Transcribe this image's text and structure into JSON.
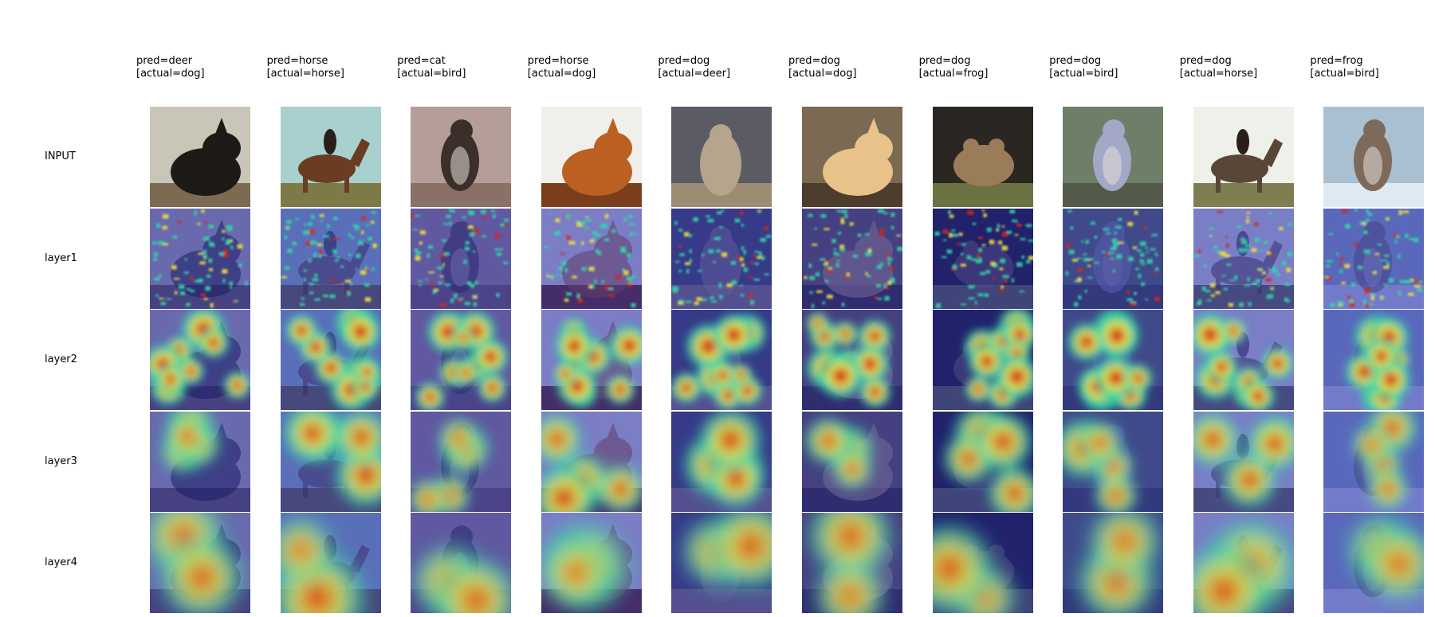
{
  "columns": [
    {
      "pred": "pred=deer",
      "actual": "[actual=dog]",
      "subject": "dog",
      "palette": {
        "bg": "#c9c6b7",
        "fg": "#1e1a17",
        "ground": "#7c6a52"
      }
    },
    {
      "pred": "pred=horse",
      "actual": "[actual=horse]",
      "subject": "horse",
      "palette": {
        "bg": "#a7d0ce",
        "fg": "#6a3d22",
        "ground": "#7e7a48"
      }
    },
    {
      "pred": "pred=cat",
      "actual": "[actual=bird]",
      "subject": "bird",
      "palette": {
        "bg": "#b69e98",
        "fg": "#3b2f29",
        "ground": "#8b7066"
      }
    },
    {
      "pred": "pred=horse",
      "actual": "[actual=dog]",
      "subject": "dog",
      "palette": {
        "bg": "#f1efe9",
        "fg": "#bb5f22",
        "ground": "#7a3e1d"
      }
    },
    {
      "pred": "pred=dog",
      "actual": "[actual=deer]",
      "subject": "deer",
      "palette": {
        "bg": "#5a5b63",
        "fg": "#b6a48d",
        "ground": "#9b8d74"
      }
    },
    {
      "pred": "pred=dog",
      "actual": "[actual=dog]",
      "subject": "dog",
      "palette": {
        "bg": "#7b6952",
        "fg": "#e8c289",
        "ground": "#4d3d2d"
      }
    },
    {
      "pred": "pred=dog",
      "actual": "[actual=frog]",
      "subject": "frog",
      "palette": {
        "bg": "#2a2622",
        "fg": "#9a7c58",
        "ground": "#6d7242"
      }
    },
    {
      "pred": "pred=dog",
      "actual": "[actual=bird]",
      "subject": "bird",
      "palette": {
        "bg": "#6f7e68",
        "fg": "#a2a8c6",
        "ground": "#535a4a"
      }
    },
    {
      "pred": "pred=dog",
      "actual": "[actual=horse]",
      "subject": "horse",
      "palette": {
        "bg": "#eef1ea",
        "fg": "#5a4636",
        "ground": "#7f7e52"
      }
    },
    {
      "pred": "pred=frog",
      "actual": "[actual=bird]",
      "subject": "bird",
      "palette": {
        "bg": "#a8c0d2",
        "fg": "#7d6a5b",
        "ground": "#dfe9f1"
      }
    }
  ],
  "rows": [
    {
      "label": "INPUT",
      "kind": "input"
    },
    {
      "label": "layer1",
      "kind": "layer1"
    },
    {
      "label": "layer2",
      "kind": "layer2"
    },
    {
      "label": "layer3",
      "kind": "layer3"
    },
    {
      "label": "layer4",
      "kind": "layer4"
    }
  ],
  "colors": {
    "overlay_tint": "#4a4fb8",
    "heat_low": "#1a1fa8",
    "heat_mid": "#31d6a8",
    "heat_warm": "#f2e33a",
    "heat_high": "#d8231a"
  }
}
